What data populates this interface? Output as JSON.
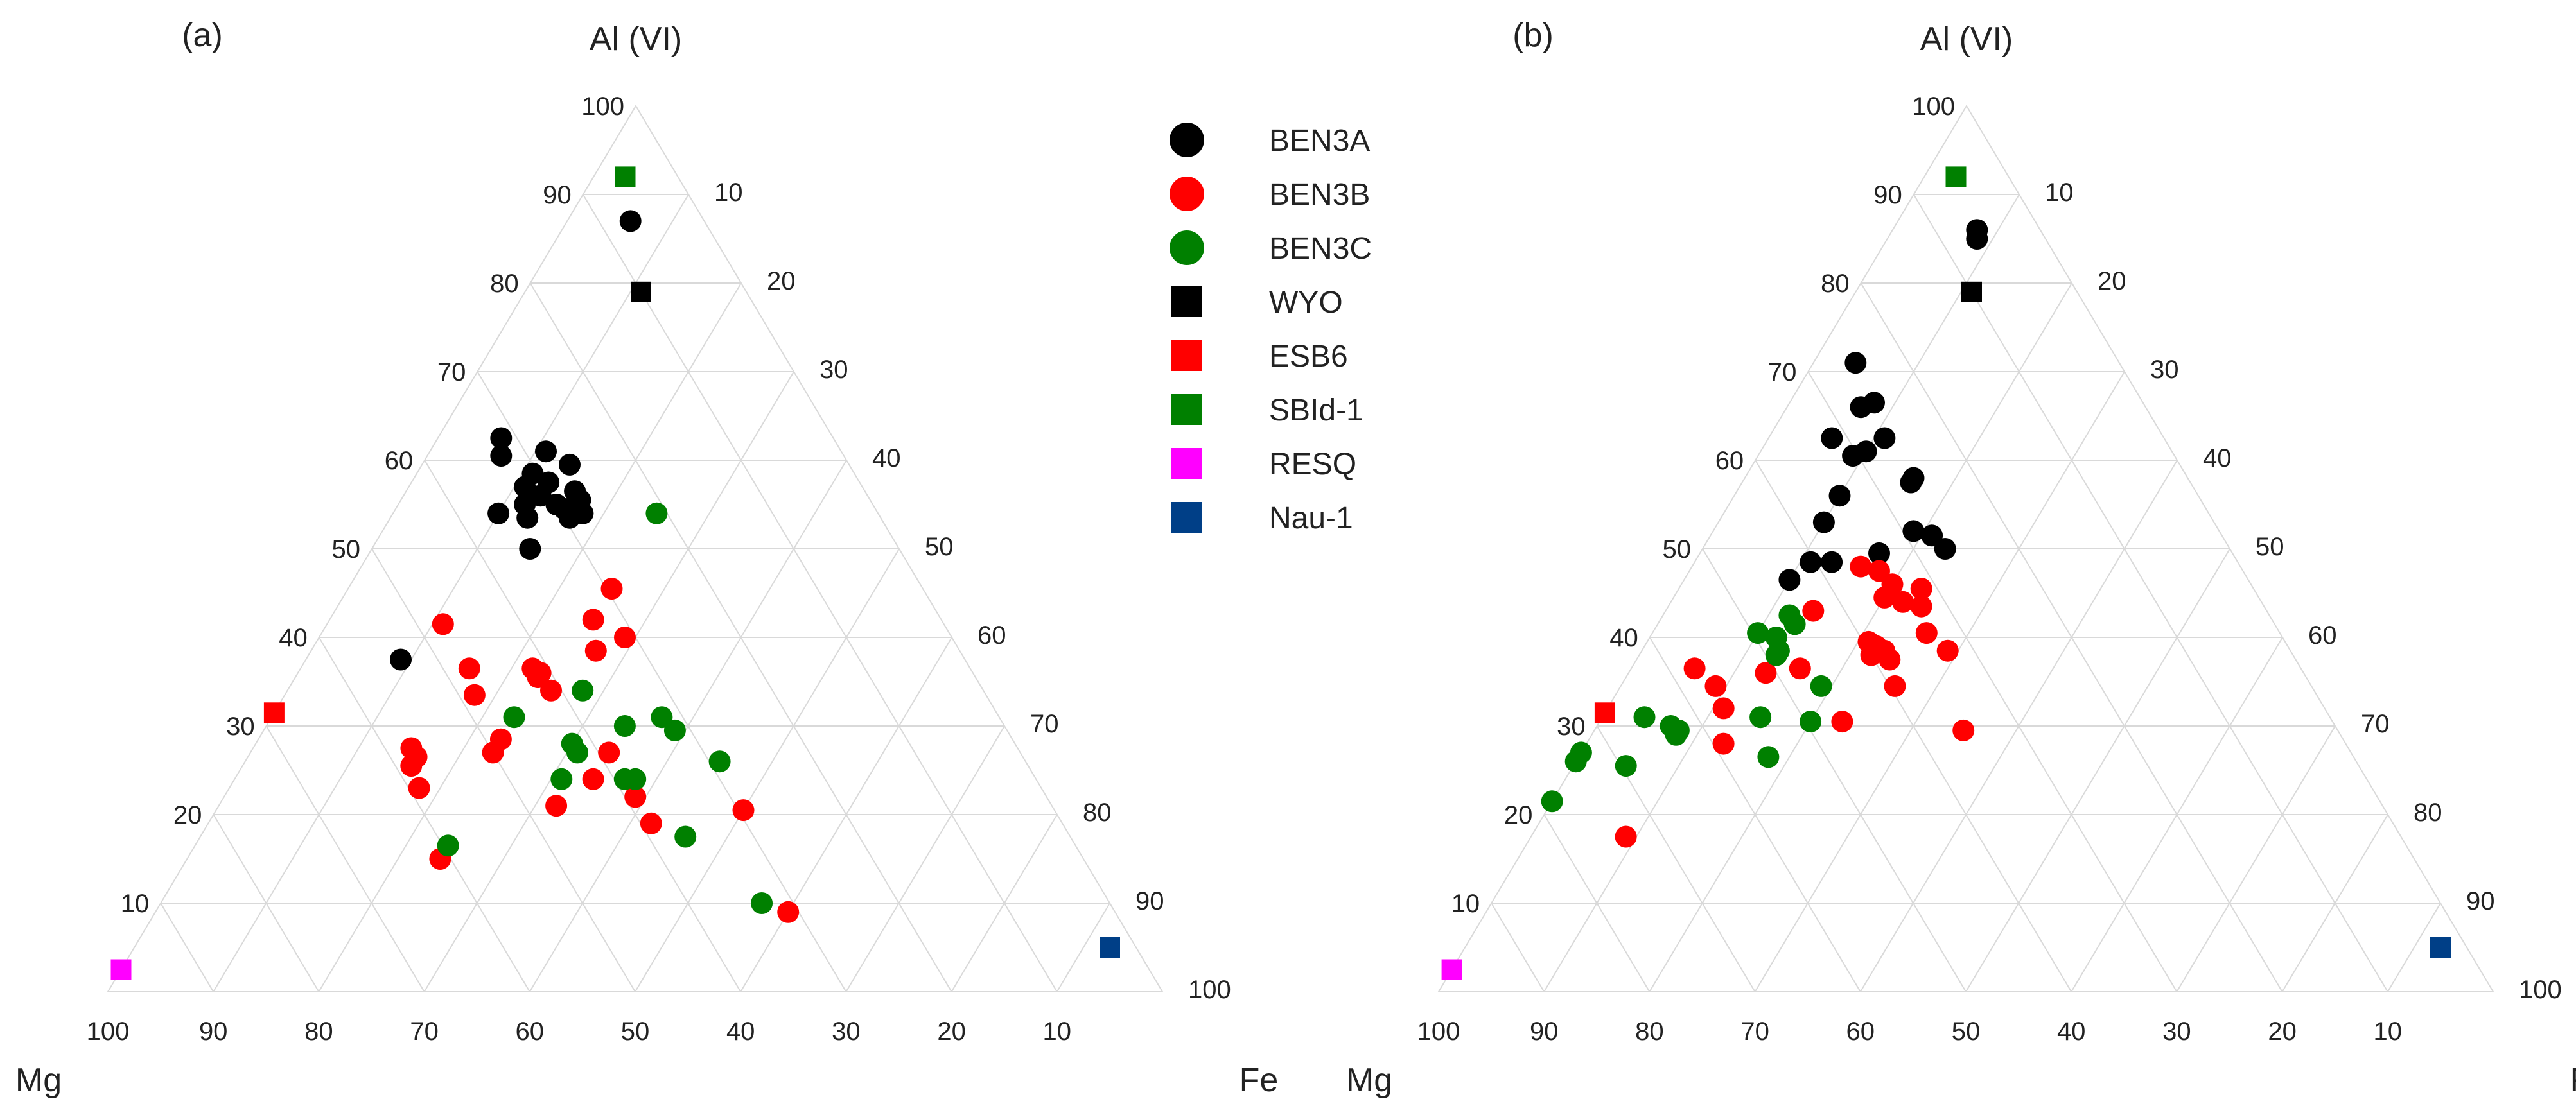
{
  "chart_data": {
    "type": "ternary-scatter",
    "axes": {
      "top": "Al (VI)",
      "left": "Mg",
      "right": "Fe"
    },
    "ticks": [
      10,
      20,
      30,
      40,
      50,
      60,
      70,
      80,
      90,
      100
    ],
    "ticks_top": [
      100,
      90,
      80,
      70,
      60,
      50,
      40,
      30,
      20,
      10
    ],
    "legend_position": "top-center",
    "legend": [
      {
        "key": "BEN3A",
        "label": "BEN3A",
        "marker": "circle",
        "color": "#000000"
      },
      {
        "key": "BEN3B",
        "label": "BEN3B",
        "marker": "circle",
        "color": "#ff0000"
      },
      {
        "key": "BEN3C",
        "label": "BEN3C",
        "marker": "circle",
        "color": "#008000"
      },
      {
        "key": "WYO",
        "label": "WYO",
        "marker": "square",
        "color": "#000000"
      },
      {
        "key": "ESB6",
        "label": "ESB6",
        "marker": "square",
        "color": "#ff0000"
      },
      {
        "key": "SBId1",
        "label": "SBId-1",
        "marker": "square",
        "color": "#008000"
      },
      {
        "key": "RESQ",
        "label": "RESQ",
        "marker": "square",
        "color": "#ff00ff"
      },
      {
        "key": "Nau1",
        "label": "Nau-1",
        "marker": "square",
        "color": "#003f87"
      }
    ],
    "references": [
      {
        "series": "SBId1",
        "al": 92,
        "fe": 3
      },
      {
        "series": "WYO",
        "al": 79,
        "fe": 11
      },
      {
        "series": "ESB6",
        "al": 31.5,
        "fe": 0
      },
      {
        "series": "RESQ",
        "al": 2.5,
        "fe": 0
      },
      {
        "series": "Nau1",
        "al": 5,
        "fe": 92.5
      }
    ],
    "panels": [
      {
        "id": "a",
        "label": "(a)",
        "points": [
          {
            "series": "BEN3A",
            "al": 87,
            "fe": 6
          },
          {
            "series": "BEN3A",
            "al": 62.5,
            "fe": 6
          },
          {
            "series": "BEN3A",
            "al": 60.5,
            "fe": 7
          },
          {
            "series": "BEN3A",
            "al": 61,
            "fe": 11
          },
          {
            "series": "BEN3A",
            "al": 59.5,
            "fe": 14
          },
          {
            "series": "BEN3A",
            "al": 58.5,
            "fe": 11
          },
          {
            "series": "BEN3A",
            "al": 57.5,
            "fe": 13
          },
          {
            "series": "BEN3A",
            "al": 57,
            "fe": 11
          },
          {
            "series": "BEN3A",
            "al": 56.5,
            "fe": 16
          },
          {
            "series": "BEN3A",
            "al": 56,
            "fe": 13
          },
          {
            "series": "BEN3A",
            "al": 55.5,
            "fe": 17
          },
          {
            "series": "BEN3A",
            "al": 55,
            "fe": 15
          },
          {
            "series": "BEN3A",
            "al": 55,
            "fe": 12
          },
          {
            "series": "BEN3A",
            "al": 54.5,
            "fe": 16
          },
          {
            "series": "BEN3A",
            "al": 54,
            "fe": 18
          },
          {
            "series": "BEN3A",
            "al": 54,
            "fe": 10
          },
          {
            "series": "BEN3A",
            "al": 53.5,
            "fe": 13
          },
          {
            "series": "BEN3A",
            "al": 53.5,
            "fe": 17
          },
          {
            "series": "BEN3A",
            "al": 50,
            "fe": 15
          },
          {
            "series": "BEN3A",
            "al": 37.5,
            "fe": 9
          },
          {
            "series": "BEN3B",
            "al": 41.5,
            "fe": 11
          },
          {
            "series": "BEN3B",
            "al": 45.5,
            "fe": 25
          },
          {
            "series": "BEN3B",
            "al": 42,
            "fe": 25
          },
          {
            "series": "BEN3B",
            "al": 40,
            "fe": 29
          },
          {
            "series": "BEN3B",
            "al": 38.5,
            "fe": 27
          },
          {
            "series": "BEN3B",
            "al": 36.5,
            "fe": 22
          },
          {
            "series": "BEN3B",
            "al": 36,
            "fe": 23
          },
          {
            "series": "BEN3B",
            "al": 36.5,
            "fe": 16
          },
          {
            "series": "BEN3B",
            "al": 35.5,
            "fe": 23
          },
          {
            "series": "BEN3B",
            "al": 33.5,
            "fe": 18
          },
          {
            "series": "BEN3B",
            "al": 34,
            "fe": 25
          },
          {
            "series": "BEN3B",
            "al": 28.5,
            "fe": 23
          },
          {
            "series": "BEN3B",
            "al": 27,
            "fe": 23
          },
          {
            "series": "BEN3B",
            "al": 27.5,
            "fe": 15
          },
          {
            "series": "BEN3B",
            "al": 26.5,
            "fe": 16
          },
          {
            "series": "BEN3B",
            "al": 25.5,
            "fe": 16
          },
          {
            "series": "BEN3B",
            "al": 23,
            "fe": 18
          },
          {
            "series": "BEN3B",
            "al": 27,
            "fe": 34
          },
          {
            "series": "BEN3B",
            "al": 24,
            "fe": 34
          },
          {
            "series": "BEN3B",
            "al": 22,
            "fe": 39
          },
          {
            "series": "BEN3B",
            "al": 21,
            "fe": 32
          },
          {
            "series": "BEN3B",
            "al": 19,
            "fe": 42
          },
          {
            "series": "BEN3B",
            "al": 20.5,
            "fe": 50
          },
          {
            "series": "BEN3B",
            "al": 15,
            "fe": 24
          },
          {
            "series": "BEN3B",
            "al": 9,
            "fe": 60
          },
          {
            "series": "BEN3C",
            "al": 54,
            "fe": 25
          },
          {
            "series": "BEN3C",
            "al": 34,
            "fe": 28
          },
          {
            "series": "BEN3C",
            "al": 31,
            "fe": 23
          },
          {
            "series": "BEN3C",
            "al": 31,
            "fe": 37
          },
          {
            "series": "BEN3C",
            "al": 30,
            "fe": 34
          },
          {
            "series": "BEN3C",
            "al": 29.5,
            "fe": 39
          },
          {
            "series": "BEN3C",
            "al": 28,
            "fe": 30
          },
          {
            "series": "BEN3C",
            "al": 27,
            "fe": 31
          },
          {
            "series": "BEN3C",
            "al": 26,
            "fe": 45
          },
          {
            "series": "BEN3C",
            "al": 24,
            "fe": 31
          },
          {
            "series": "BEN3C",
            "al": 24,
            "fe": 37
          },
          {
            "series": "BEN3C",
            "al": 24,
            "fe": 38
          },
          {
            "series": "BEN3C",
            "al": 17.5,
            "fe": 46
          },
          {
            "series": "BEN3C",
            "al": 16.5,
            "fe": 24
          },
          {
            "series": "BEN3C",
            "al": 10,
            "fe": 57
          }
        ]
      },
      {
        "id": "b",
        "label": "(b)",
        "points": [
          {
            "series": "BEN3A",
            "al": 86,
            "fe": 8
          },
          {
            "series": "BEN3A",
            "al": 85,
            "fe": 8.5
          },
          {
            "series": "BEN3A",
            "al": 71,
            "fe": 4
          },
          {
            "series": "BEN3A",
            "al": 66,
            "fe": 7
          },
          {
            "series": "BEN3A",
            "al": 66.5,
            "fe": 8
          },
          {
            "series": "BEN3A",
            "al": 62.5,
            "fe": 6
          },
          {
            "series": "BEN3A",
            "al": 62.5,
            "fe": 11
          },
          {
            "series": "BEN3A",
            "al": 61,
            "fe": 10
          },
          {
            "series": "BEN3A",
            "al": 60.5,
            "fe": 9
          },
          {
            "series": "BEN3A",
            "al": 58,
            "fe": 16
          },
          {
            "series": "BEN3A",
            "al": 57.5,
            "fe": 16
          },
          {
            "series": "BEN3A",
            "al": 56,
            "fe": 10
          },
          {
            "series": "BEN3A",
            "al": 53,
            "fe": 10
          },
          {
            "series": "BEN3A",
            "al": 52,
            "fe": 19
          },
          {
            "series": "BEN3A",
            "al": 51.5,
            "fe": 21
          },
          {
            "series": "BEN3A",
            "al": 50,
            "fe": 23
          },
          {
            "series": "BEN3A",
            "al": 49.5,
            "fe": 17
          },
          {
            "series": "BEN3A",
            "al": 48.5,
            "fe": 11
          },
          {
            "series": "BEN3A",
            "al": 48.5,
            "fe": 13
          },
          {
            "series": "BEN3A",
            "al": 46.5,
            "fe": 10
          },
          {
            "series": "BEN3B",
            "al": 48,
            "fe": 16
          },
          {
            "series": "BEN3B",
            "al": 47.5,
            "fe": 18
          },
          {
            "series": "BEN3B",
            "al": 46,
            "fe": 20
          },
          {
            "series": "BEN3B",
            "al": 45.5,
            "fe": 23
          },
          {
            "series": "BEN3B",
            "al": 44.5,
            "fe": 20
          },
          {
            "series": "BEN3B",
            "al": 44,
            "fe": 22
          },
          {
            "series": "BEN3B",
            "al": 43.5,
            "fe": 24
          },
          {
            "series": "BEN3B",
            "al": 43,
            "fe": 14
          },
          {
            "series": "BEN3B",
            "al": 40.5,
            "fe": 26
          },
          {
            "series": "BEN3B",
            "al": 39.5,
            "fe": 21
          },
          {
            "series": "BEN3B",
            "al": 39,
            "fe": 22
          },
          {
            "series": "BEN3B",
            "al": 38.5,
            "fe": 23
          },
          {
            "series": "BEN3B",
            "al": 38.5,
            "fe": 29
          },
          {
            "series": "BEN3B",
            "al": 38,
            "fe": 22
          },
          {
            "series": "BEN3B",
            "al": 37.5,
            "fe": 24
          },
          {
            "series": "BEN3B",
            "al": 36.5,
            "fe": 16
          },
          {
            "series": "BEN3B",
            "al": 36,
            "fe": 13
          },
          {
            "series": "BEN3B",
            "al": 36.5,
            "fe": 6
          },
          {
            "series": "BEN3B",
            "al": 34.5,
            "fe": 9
          },
          {
            "series": "BEN3B",
            "al": 34.5,
            "fe": 26
          },
          {
            "series": "BEN3B",
            "al": 32,
            "fe": 11
          },
          {
            "series": "BEN3B",
            "al": 30.5,
            "fe": 23
          },
          {
            "series": "BEN3B",
            "al": 29.5,
            "fe": 35
          },
          {
            "series": "BEN3B",
            "al": 28,
            "fe": 13
          },
          {
            "series": "BEN3B",
            "al": 17.5,
            "fe": 9
          },
          {
            "series": "BEN3C",
            "al": 42.5,
            "fe": 12
          },
          {
            "series": "BEN3C",
            "al": 41.5,
            "fe": 13
          },
          {
            "series": "BEN3C",
            "al": 40.5,
            "fe": 10
          },
          {
            "series": "BEN3C",
            "al": 40,
            "fe": 12
          },
          {
            "series": "BEN3C",
            "al": 38.5,
            "fe": 13
          },
          {
            "series": "BEN3C",
            "al": 38,
            "fe": 13
          },
          {
            "series": "BEN3C",
            "al": 34.5,
            "fe": 19
          },
          {
            "series": "BEN3C",
            "al": 31,
            "fe": 4
          },
          {
            "series": "BEN3C",
            "al": 31,
            "fe": 15
          },
          {
            "series": "BEN3C",
            "al": 30.5,
            "fe": 20
          },
          {
            "series": "BEN3C",
            "al": 30,
            "fe": 7
          },
          {
            "series": "BEN3C",
            "al": 29.5,
            "fe": 8
          },
          {
            "series": "BEN3C",
            "al": 29,
            "fe": 8
          },
          {
            "series": "BEN3C",
            "al": 27,
            "fe": 0
          },
          {
            "series": "BEN3C",
            "al": 26.5,
            "fe": 18
          },
          {
            "series": "BEN3C",
            "al": 26,
            "fe": 0
          },
          {
            "series": "BEN3C",
            "al": 25.5,
            "fe": 5
          },
          {
            "series": "BEN3C",
            "al": 21.5,
            "fe": 0
          }
        ]
      }
    ]
  }
}
